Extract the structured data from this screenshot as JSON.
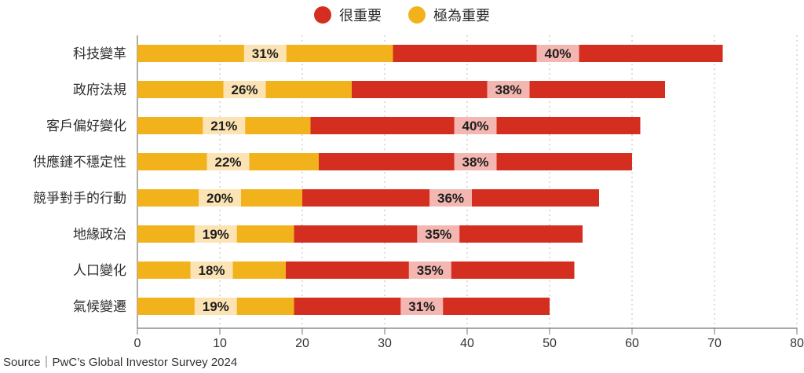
{
  "chart_data": {
    "type": "bar",
    "orientation": "horizontal",
    "stacked": true,
    "categories": [
      "科技變革",
      "政府法規",
      "客戶偏好變化",
      "供應鏈不穩定性",
      "競爭對手的行動",
      "地緣政治",
      "人口變化",
      "氣候變遷"
    ],
    "series": [
      {
        "name": "極為重要",
        "color": "#f2b21c",
        "values": [
          31,
          26,
          21,
          22,
          20,
          19,
          18,
          19
        ],
        "labels": [
          "31%",
          "26%",
          "21%",
          "22%",
          "20%",
          "19%",
          "18%",
          "19%"
        ]
      },
      {
        "name": "很重要",
        "color": "#d42e20",
        "values": [
          40,
          38,
          40,
          38,
          36,
          35,
          35,
          31
        ],
        "labels": [
          "40%",
          "38%",
          "40%",
          "38%",
          "36%",
          "35%",
          "35%",
          "31%"
        ]
      }
    ],
    "xlim": [
      0,
      80
    ],
    "xticks": [
      "0",
      "10",
      "20",
      "30",
      "40",
      "50",
      "60",
      "70",
      "80"
    ],
    "grid": true,
    "legend_position": "top-center"
  },
  "legend": [
    {
      "label": "很重要",
      "color": "#d42e20"
    },
    {
      "label": "極為重要",
      "color": "#f2b21c"
    }
  ],
  "source": "Source｜PwC’s Global Investor Survey 2024"
}
